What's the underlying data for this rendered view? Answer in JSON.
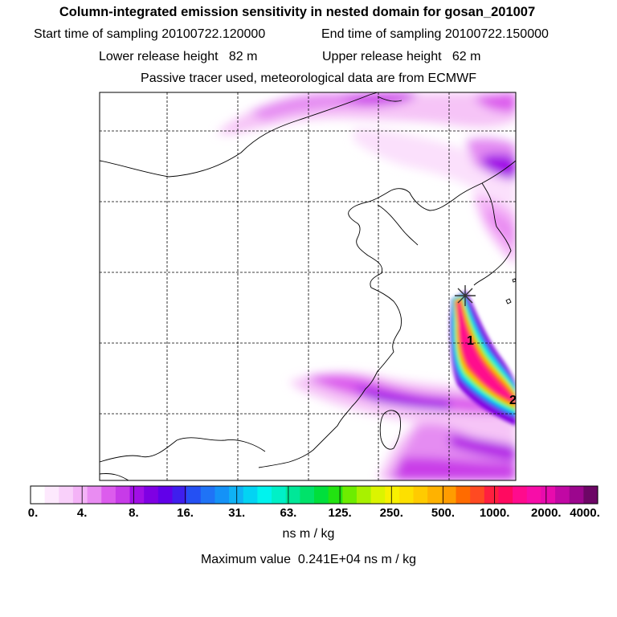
{
  "header": {
    "title": "Column-integrated emission sensitivity in nested domain for gosan_201007",
    "start_label": "Start time of sampling",
    "start_value": "20100722.120000",
    "end_label": "End time of sampling",
    "end_value": "20100722.150000",
    "lower_label": "Lower release height",
    "lower_value": "82 m",
    "upper_label": "Upper release height",
    "upper_value": "62 m",
    "tracer_note": "Passive tracer used, meteorological data are from ECMWF"
  },
  "map": {
    "markers": [
      {
        "label": "1"
      },
      {
        "label": "2"
      }
    ],
    "release_site_icon": "star-burst-icon",
    "colors": {
      "coastline": "#000000",
      "grid": "#000000",
      "frame": "#000000"
    }
  },
  "colorbar": {
    "tick_labels": [
      "0.",
      "4.",
      "8.",
      "16.",
      "31.",
      "63.",
      "125.",
      "250.",
      "500.",
      "1000.",
      "2000.",
      "4000."
    ],
    "colors": [
      "#ffffff",
      "#fde9fd",
      "#f9d0fa",
      "#f4b3f7",
      "#e98cf2",
      "#dc5ced",
      "#c73be8",
      "#a10fe6",
      "#7f00e3",
      "#6100e9",
      "#3f1eee",
      "#2450f3",
      "#1f73f6",
      "#1492f7",
      "#0fb2f5",
      "#03d3f3",
      "#00f3ee",
      "#00f0c7",
      "#00e798",
      "#00e26a",
      "#00df3c",
      "#22e311",
      "#6ded00",
      "#a8f100",
      "#dbf400",
      "#f8f000",
      "#fde000",
      "#ffcb00",
      "#ffb200",
      "#ff9c00",
      "#ff6b00",
      "#ff4a22",
      "#ff1f3f",
      "#ff0a60",
      "#ff0b8d",
      "#f70da8",
      "#e80bad",
      "#c108a4",
      "#9c068e",
      "#6d0666"
    ],
    "units": "ns m / kg",
    "max_label": "Maximum value",
    "max_value": "0.241E+04 ns m / kg"
  }
}
